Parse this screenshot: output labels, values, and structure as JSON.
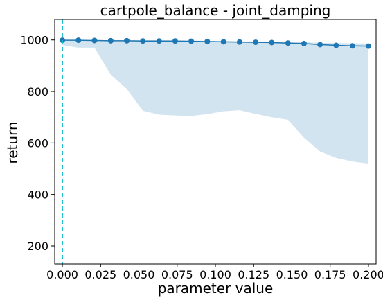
{
  "chart_data": {
    "type": "line",
    "title": "cartpole_balance - joint_damping",
    "xlabel": "parameter value",
    "ylabel": "return",
    "xlim": [
      -0.005,
      0.205
    ],
    "ylim": [
      130,
      1080
    ],
    "x_ticks": [
      0.0,
      0.025,
      0.05,
      0.075,
      0.1,
      0.125,
      0.15,
      0.175,
      0.2
    ],
    "x_tick_labels": [
      "0.000",
      "0.025",
      "0.050",
      "0.075",
      "0.100",
      "0.125",
      "0.150",
      "0.175",
      "0.200"
    ],
    "y_ticks": [
      200,
      400,
      600,
      800,
      1000
    ],
    "y_tick_labels": [
      "200",
      "400",
      "600",
      "800",
      "1000"
    ],
    "grid": false,
    "legend": "none",
    "reference_line": {
      "x": 0.0,
      "style": "dashed",
      "color": "#17becf"
    },
    "series": [
      {
        "color": "#1f77b4",
        "band_color": "#1f77b4",
        "band_opacity": 0.2,
        "x": [
          0.0,
          0.0105,
          0.021,
          0.0316,
          0.0421,
          0.0526,
          0.0632,
          0.0737,
          0.0842,
          0.0947,
          0.1053,
          0.1158,
          0.1263,
          0.1368,
          0.1474,
          0.1579,
          0.1684,
          0.1789,
          0.1895,
          0.2
        ],
        "values": [
          999,
          999,
          998,
          997,
          997,
          996,
          996,
          996,
          995,
          994,
          993,
          992,
          991,
          990,
          988,
          986,
          982,
          979,
          977,
          976
        ],
        "upper": [
          1000,
          1000,
          1000,
          999,
          999,
          999,
          999,
          998,
          998,
          997,
          996,
          995,
          994,
          993,
          992,
          991,
          989,
          988,
          987,
          986
        ],
        "lower": [
          980,
          970,
          970,
          865,
          810,
          725,
          710,
          707,
          705,
          712,
          723,
          727,
          713,
          700,
          690,
          620,
          567,
          542,
          528,
          520
        ]
      }
    ]
  }
}
